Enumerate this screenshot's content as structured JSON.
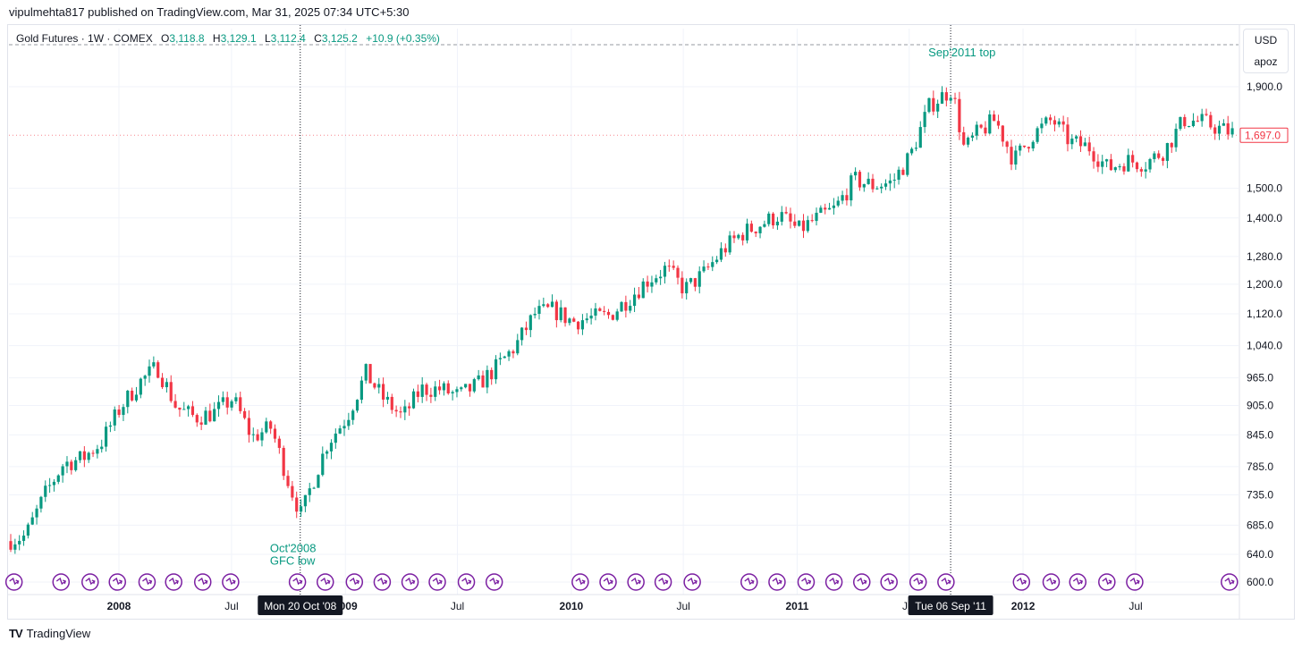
{
  "publisher_line": "vipulmehta817 published on TradingView.com, Mar 31, 2025 07:34 UTC+5:30",
  "legend": {
    "symbol": "Gold Futures · 1W · COMEX",
    "open_label": "O",
    "open": "3,118.8",
    "high_label": "H",
    "high": "3,129.1",
    "low_label": "L",
    "low": "3,112.4",
    "close_label": "C",
    "close": "3,125.2",
    "change": "+10.9 (+0.35%)"
  },
  "unit_box": {
    "currency": "USD",
    "unit": "apoz"
  },
  "brand": {
    "logo": "TV",
    "name": "TradingView"
  },
  "colors": {
    "up": "#089981",
    "down": "#f23645",
    "annotation": "#089981",
    "event_icon": "#7b1fa2",
    "grid": "#f0f3fa",
    "crosshair_label_bg": "#131722",
    "price_tag": "#f23645"
  },
  "chart_data": {
    "type": "candlestick",
    "title": "",
    "y_scale": "log",
    "ylim": [
      582,
      1960
    ],
    "x_range": [
      "2007-07-01",
      "2012-12-31"
    ],
    "grid": true,
    "y_ticks": [
      600,
      640,
      685,
      735,
      785,
      845,
      905,
      965,
      1040,
      1120,
      1200,
      1280,
      1400,
      1500,
      1900
    ],
    "y_tick_labels": [
      "600.0",
      "640.0",
      "685.0",
      "735.0",
      "785.0",
      "845.0",
      "905.0",
      "965.0",
      "1,040.0",
      "1,120.0",
      "1,200.0",
      "1,280.0",
      "1,400.0",
      "1,500.0",
      "1,900.0"
    ],
    "x_ticks": [
      {
        "label": "2008",
        "date": "2008-01-01"
      },
      {
        "label": "Jul",
        "date": "2008-07-01"
      },
      {
        "label": "2009",
        "date": "2009-01-01"
      },
      {
        "label": "Jul",
        "date": "2009-07-01"
      },
      {
        "label": "2010",
        "date": "2010-01-01"
      },
      {
        "label": "Jul",
        "date": "2010-07-01"
      },
      {
        "label": "2011",
        "date": "2011-01-01"
      },
      {
        "label": "Jul",
        "date": "2011-07-01"
      },
      {
        "label": "2012",
        "date": "2012-01-01"
      },
      {
        "label": "Jul",
        "date": "2012-07-01"
      }
    ],
    "price_series": [
      [
        "2007-07-01",
        660
      ],
      [
        "2007-08-01",
        668
      ],
      [
        "2007-09-01",
        735
      ],
      [
        "2007-10-01",
        790
      ],
      [
        "2007-11-01",
        800
      ],
      [
        "2007-12-01",
        830
      ],
      [
        "2008-01-01",
        900
      ],
      [
        "2008-02-01",
        955
      ],
      [
        "2008-03-01",
        990
      ],
      [
        "2008-04-01",
        900
      ],
      [
        "2008-05-01",
        880
      ],
      [
        "2008-06-01",
        890
      ],
      [
        "2008-07-01",
        920
      ],
      [
        "2008-08-01",
        840
      ],
      [
        "2008-09-01",
        860
      ],
      [
        "2008-10-01",
        750
      ],
      [
        "2008-10-20",
        700
      ],
      [
        "2008-11-01",
        740
      ],
      [
        "2008-12-01",
        830
      ],
      [
        "2009-01-01",
        880
      ],
      [
        "2009-02-01",
        975
      ],
      [
        "2009-03-01",
        920
      ],
      [
        "2009-04-01",
        880
      ],
      [
        "2009-05-01",
        940
      ],
      [
        "2009-06-01",
        940
      ],
      [
        "2009-07-01",
        925
      ],
      [
        "2009-08-01",
        950
      ],
      [
        "2009-09-01",
        990
      ],
      [
        "2009-10-01",
        1040
      ],
      [
        "2009-11-01",
        1120
      ],
      [
        "2009-12-01",
        1130
      ],
      [
        "2010-01-01",
        1100
      ],
      [
        "2010-02-01",
        1110
      ],
      [
        "2010-03-01",
        1115
      ],
      [
        "2010-04-01",
        1160
      ],
      [
        "2010-05-01",
        1210
      ],
      [
        "2010-06-01",
        1245
      ],
      [
        "2010-07-01",
        1185
      ],
      [
        "2010-08-01",
        1230
      ],
      [
        "2010-09-01",
        1300
      ],
      [
        "2010-10-01",
        1350
      ],
      [
        "2010-11-01",
        1380
      ],
      [
        "2010-12-01",
        1410
      ],
      [
        "2011-01-01",
        1360
      ],
      [
        "2011-02-01",
        1400
      ],
      [
        "2011-03-01",
        1430
      ],
      [
        "2011-04-01",
        1530
      ],
      [
        "2011-05-01",
        1510
      ],
      [
        "2011-06-01",
        1520
      ],
      [
        "2011-07-01",
        1620
      ],
      [
        "2011-08-01",
        1820
      ],
      [
        "2011-09-06",
        1890
      ],
      [
        "2011-09-26",
        1640
      ],
      [
        "2011-10-15",
        1700
      ],
      [
        "2011-11-15",
        1760
      ],
      [
        "2011-12-15",
        1600
      ],
      [
        "2012-01-15",
        1700
      ],
      [
        "2012-02-15",
        1760
      ],
      [
        "2012-03-15",
        1670
      ],
      [
        "2012-04-15",
        1650
      ],
      [
        "2012-05-15",
        1570
      ],
      [
        "2012-06-15",
        1600
      ],
      [
        "2012-07-15",
        1590
      ],
      [
        "2012-08-15",
        1640
      ],
      [
        "2012-09-15",
        1760
      ],
      [
        "2012-10-15",
        1750
      ],
      [
        "2012-11-15",
        1720
      ],
      [
        "2012-12-15",
        1697
      ]
    ],
    "last_price": 1697,
    "last_price_label": "1,697.0",
    "crosshairs": [
      {
        "date": "2008-10-20",
        "label": "Mon 20 Oct '08"
      },
      {
        "date": "2011-09-06",
        "label": "Tue 06 Sep '11"
      }
    ],
    "annotations": [
      {
        "lines": [
          "Oct'2008",
          "GFC low"
        ],
        "date": "2008-09-01",
        "price": 625
      },
      {
        "lines": [
          "Sep'2011 top"
        ],
        "date": "2011-08-01",
        "price": 2040
      }
    ],
    "event_markers": [
      "2007-07-01",
      "2007-09-15",
      "2007-11-01",
      "2007-12-15",
      "2008-02-01",
      "2008-03-15",
      "2008-05-01",
      "2008-06-15",
      "2008-10-01",
      "2008-11-15",
      "2009-01-01",
      "2009-02-15",
      "2009-04-01",
      "2009-05-15",
      "2009-07-01",
      "2009-08-15",
      "2010-01-01",
      "2010-02-15",
      "2010-04-01",
      "2010-05-15",
      "2010-07-01",
      "2010-10-01",
      "2010-11-15",
      "2011-01-01",
      "2011-02-15",
      "2011-04-01",
      "2011-05-15",
      "2011-07-01",
      "2011-08-15",
      "2011-12-15",
      "2012-02-01",
      "2012-03-15",
      "2012-05-01",
      "2012-06-15",
      "2012-11-15"
    ]
  }
}
